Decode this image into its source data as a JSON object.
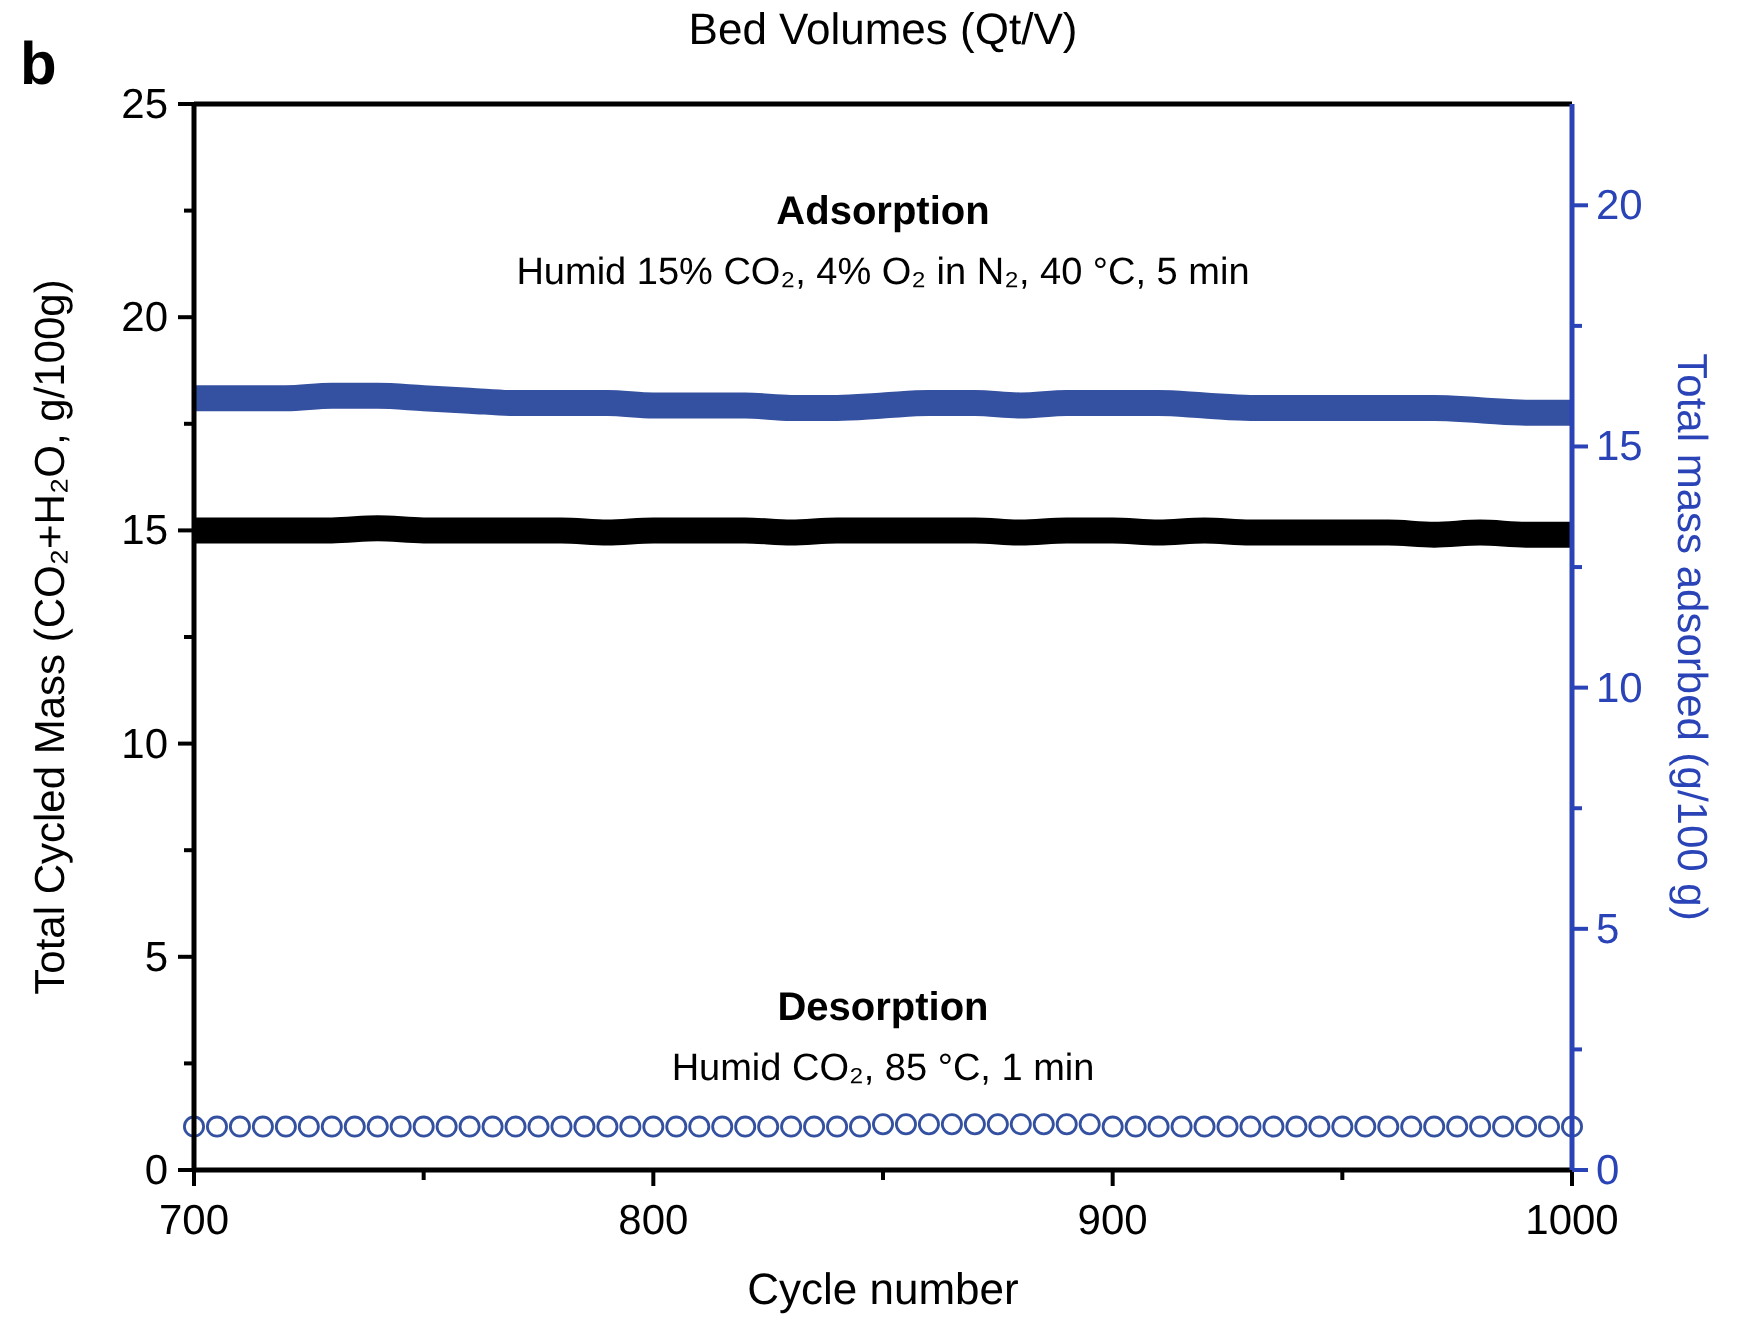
{
  "chart_data": {
    "type": "line",
    "x2label": "Bed Volumes (Qt/V)",
    "xlabel": "Cycle number",
    "ylabel": "Total Cycled Mass (CO₂+H₂O, g/100g)",
    "y2label": "Total mass adsorbed (g/100 g)",
    "annotations": [
      "b",
      "Adsorption",
      "Humid 15% CO₂, 4% O₂ in N₂, 40 °C, 5 min",
      "Desorption",
      "Humid CO₂, 85 °C, 1 min"
    ],
    "xlim": [
      700,
      1000
    ],
    "xticks": [
      700,
      {
        "value": 750,
        "label": null
      },
      800,
      {
        "value": 850,
        "label": null
      },
      900,
      {
        "value": 950,
        "label": null
      },
      1000
    ],
    "ylim": [
      0,
      25
    ],
    "yticks": [
      0,
      {
        "value": 2.5,
        "label": null
      },
      5,
      {
        "value": 7.5,
        "label": null
      },
      10,
      {
        "value": 12.5,
        "label": null
      },
      15,
      {
        "value": 17.5,
        "label": null
      },
      20,
      {
        "value": 22.5,
        "label": null
      },
      25
    ],
    "y2lim": [
      0,
      22.1
    ],
    "y2ticks": [
      0,
      {
        "value": 2.5,
        "label": null
      },
      5,
      {
        "value": 7.5,
        "label": null
      },
      10,
      {
        "value": 12.5,
        "label": null
      },
      15,
      {
        "value": 17.5,
        "label": null
      },
      20
    ],
    "grid": false,
    "series": [
      {
        "color": "#000000",
        "x": [
          700,
          710,
          720,
          730,
          740,
          750,
          760,
          770,
          780,
          790,
          800,
          810,
          820,
          830,
          840,
          850,
          860,
          870,
          880,
          890,
          900,
          910,
          920,
          930,
          940,
          950,
          960,
          970,
          980,
          990,
          1000
        ],
        "values": [
          15.0,
          15.0,
          15.0,
          15.0,
          15.05,
          15.0,
          15.0,
          15.0,
          15.0,
          14.95,
          15.0,
          15.0,
          15.0,
          14.95,
          15.0,
          15.0,
          15.0,
          15.0,
          14.95,
          15.0,
          15.0,
          14.95,
          15.0,
          14.95,
          14.95,
          14.95,
          14.95,
          14.9,
          14.95,
          14.9,
          14.9
        ]
      },
      {
        "type": "line",
        "axis": "y2",
        "color": "#3450a0",
        "x": [
          700,
          710,
          720,
          730,
          740,
          750,
          760,
          770,
          780,
          790,
          800,
          810,
          820,
          830,
          840,
          850,
          860,
          870,
          880,
          890,
          900,
          910,
          920,
          930,
          940,
          950,
          960,
          970,
          980,
          990,
          1000
        ],
        "values": [
          16.0,
          16.0,
          16.0,
          16.05,
          16.05,
          16.0,
          15.95,
          15.9,
          15.9,
          15.9,
          15.85,
          15.85,
          15.85,
          15.8,
          15.8,
          15.85,
          15.9,
          15.9,
          15.85,
          15.9,
          15.9,
          15.9,
          15.85,
          15.8,
          15.8,
          15.8,
          15.8,
          15.8,
          15.75,
          15.7,
          15.7
        ]
      },
      {
        "type": "scatter",
        "axis": "y2",
        "marker": "circle",
        "color": "#3450a0",
        "x": [
          700,
          705,
          710,
          715,
          720,
          725,
          730,
          735,
          740,
          745,
          750,
          755,
          760,
          765,
          770,
          775,
          780,
          785,
          790,
          795,
          800,
          805,
          810,
          815,
          820,
          825,
          830,
          835,
          840,
          845,
          850,
          855,
          860,
          865,
          870,
          875,
          880,
          885,
          890,
          895,
          900,
          905,
          910,
          915,
          920,
          925,
          930,
          935,
          940,
          945,
          950,
          955,
          960,
          965,
          970,
          975,
          980,
          985,
          990,
          995,
          1000
        ],
        "values": [
          0.9,
          0.9,
          0.9,
          0.9,
          0.9,
          0.9,
          0.9,
          0.9,
          0.9,
          0.9,
          0.9,
          0.9,
          0.9,
          0.9,
          0.9,
          0.9,
          0.9,
          0.9,
          0.9,
          0.9,
          0.9,
          0.9,
          0.9,
          0.9,
          0.9,
          0.9,
          0.9,
          0.9,
          0.9,
          0.9,
          0.95,
          0.95,
          0.95,
          0.95,
          0.95,
          0.95,
          0.95,
          0.95,
          0.95,
          0.95,
          0.9,
          0.9,
          0.9,
          0.9,
          0.9,
          0.9,
          0.9,
          0.9,
          0.9,
          0.9,
          0.9,
          0.9,
          0.9,
          0.9,
          0.9,
          0.9,
          0.9,
          0.9,
          0.9,
          0.9,
          0.9
        ]
      }
    ]
  }
}
